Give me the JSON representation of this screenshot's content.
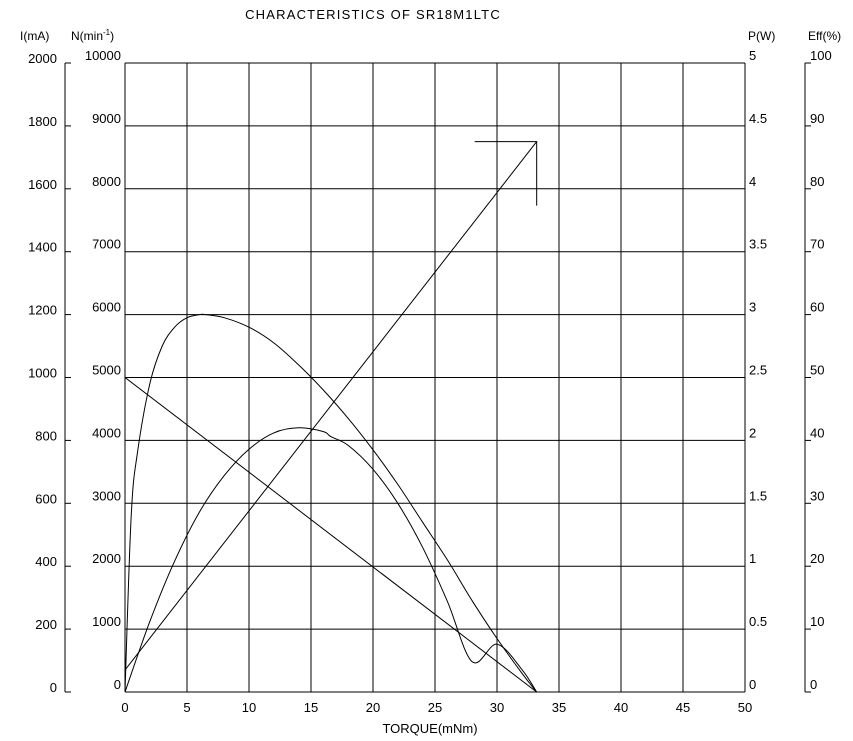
{
  "chart_data": {
    "type": "line",
    "title": "CHARACTERISTICS  OF   SR18M1LTC",
    "xlabel": "TORQUE(mNm)",
    "xlim": [
      0,
      50
    ],
    "x_ticks": [
      "0",
      "5",
      "10",
      "15",
      "20",
      "25",
      "30",
      "35",
      "40",
      "45",
      "50"
    ],
    "grid": true,
    "axes": {
      "current": {
        "label": "I(mA)",
        "range": [
          0,
          2000
        ],
        "ticks": [
          "0",
          "200",
          "400",
          "600",
          "800",
          "1000",
          "1200",
          "1400",
          "1600",
          "1800",
          "2000"
        ]
      },
      "speed": {
        "label": "N(min",
        "label_sup": "-1",
        "label_close": ")",
        "range": [
          0,
          10000
        ],
        "ticks": [
          "0",
          "1000",
          "2000",
          "3000",
          "4000",
          "5000",
          "6000",
          "7000",
          "8000",
          "9000",
          "10000"
        ]
      },
      "power": {
        "label": "P(W)",
        "range": [
          0,
          5
        ],
        "ticks": [
          "0",
          "0.5",
          "1",
          "1.5",
          "2",
          "2.5",
          "3",
          "3.5",
          "4",
          "4.5",
          "5"
        ]
      },
      "efficiency": {
        "label": "Eff(%)",
        "range": [
          0,
          100
        ],
        "ticks": [
          "0",
          "10",
          "20",
          "30",
          "40",
          "50",
          "60",
          "70",
          "80",
          "90",
          "100"
        ]
      }
    },
    "series": [
      {
        "axis": "speed",
        "x": [
          0,
          33.2
        ],
        "y": [
          5000,
          0
        ]
      },
      {
        "axis": "current",
        "x": [
          0,
          33.2
        ],
        "y": [
          70,
          1750
        ]
      },
      {
        "axis": "power",
        "x": [
          0,
          2,
          4,
          6,
          8,
          10,
          12,
          14,
          16,
          16.6,
          18,
          20,
          22,
          24,
          26,
          28,
          30,
          32,
          33.2
        ],
        "y": [
          0,
          0.56,
          1.04,
          1.43,
          1.72,
          1.93,
          2.06,
          2.1,
          2.07,
          2.03,
          1.96,
          1.77,
          1.5,
          1.15,
          0.72,
          0.24,
          0.38,
          0.18,
          0
        ]
      },
      {
        "axis": "efficiency",
        "x": [
          0,
          0.5,
          1,
          2,
          3,
          4,
          5,
          6,
          6.5,
          8,
          10,
          12,
          14,
          16,
          18,
          20,
          22,
          24,
          26,
          28,
          30,
          32,
          33.2
        ],
        "y": [
          0,
          28,
          38,
          49,
          55,
          58,
          59.5,
          60,
          60,
          59.5,
          58,
          55.5,
          52,
          48,
          43.5,
          38.5,
          33,
          27,
          21,
          14.5,
          8.5,
          3,
          0
        ]
      }
    ]
  }
}
